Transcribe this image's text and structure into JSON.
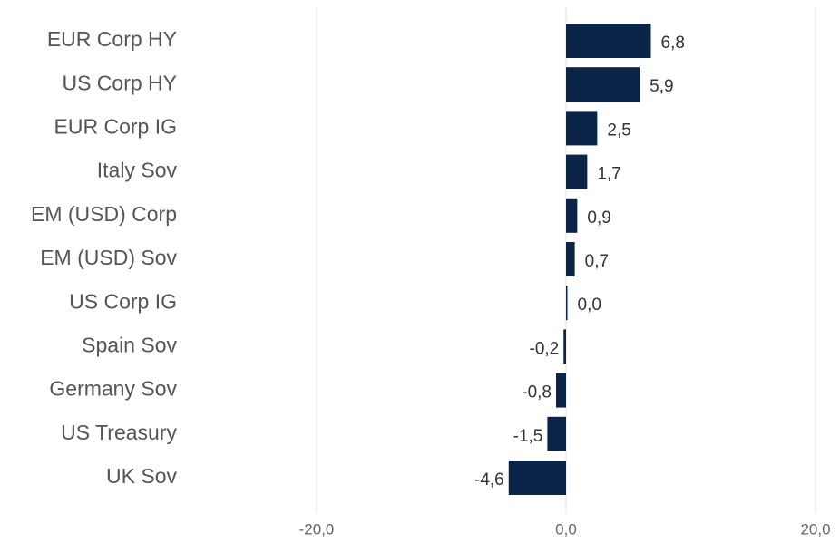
{
  "chart_data": {
    "type": "barh",
    "categories": [
      "EUR Corp HY",
      "US Corp HY",
      "EUR Corp IG",
      "Italy Sov",
      "EM (USD) Corp",
      "EM (USD) Sov",
      "US Corp IG",
      "Spain Sov",
      "Germany Sov",
      "US Treasury",
      "UK Sov"
    ],
    "values": [
      6.8,
      5.9,
      2.5,
      1.7,
      0.9,
      0.7,
      0.0,
      -0.2,
      -0.8,
      -1.5,
      -4.6
    ],
    "value_labels": [
      "6,8",
      "5,9",
      "2,5",
      "1,7",
      "0,9",
      "0,7",
      "0,0",
      "-0,2",
      "-0,8",
      "-1,5",
      "-4,6"
    ],
    "color": "#0b2447",
    "xlim": [
      -20,
      20
    ],
    "xticks": [
      {
        "value": -20,
        "label": "-20,0"
      },
      {
        "value": 0,
        "label": "0,0"
      },
      {
        "value": 20,
        "label": "20,0"
      }
    ],
    "grid": true
  }
}
